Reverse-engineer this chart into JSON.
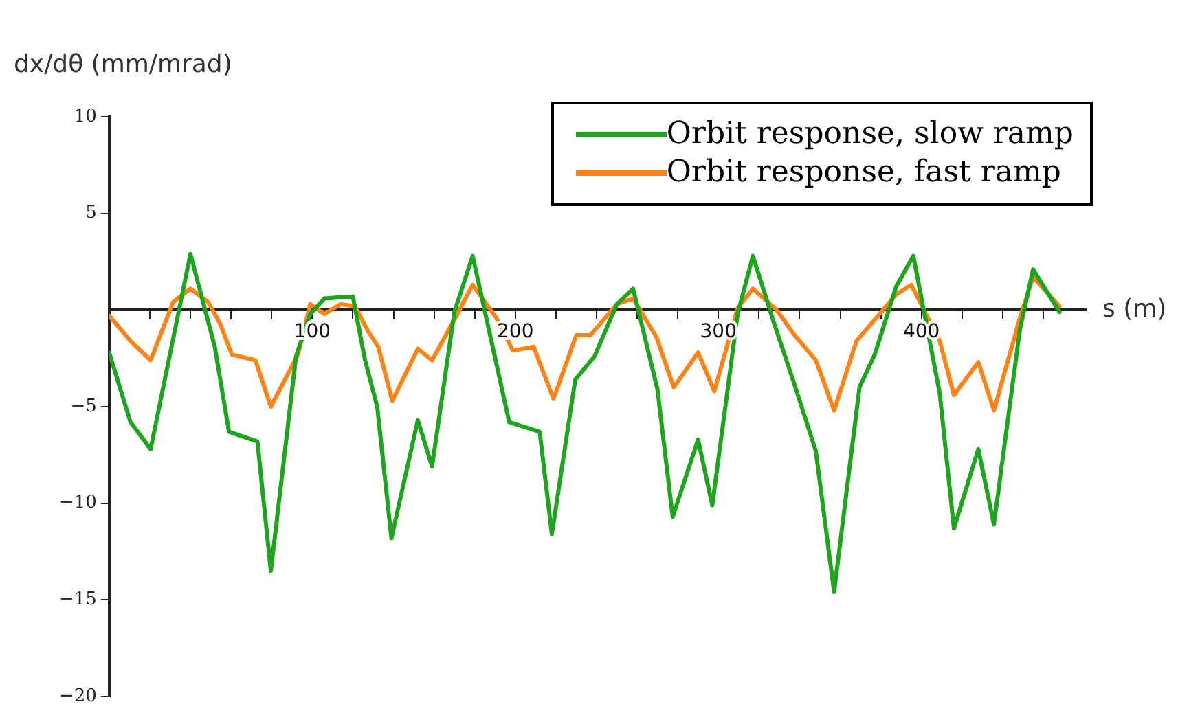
{
  "chart_data": {
    "type": "line",
    "ylabel": "dx/dθ (mm/mrad)",
    "xlabel": "s (m)",
    "xlim": [
      0,
      481
    ],
    "ylim": [
      -20,
      10
    ],
    "xticks": [
      {
        "value": 20,
        "label": null
      },
      {
        "value": 40,
        "label": null
      },
      {
        "value": 60,
        "label": null
      },
      {
        "value": 80,
        "label": null
      },
      100,
      {
        "value": 120,
        "label": null
      },
      {
        "value": 140,
        "label": null
      },
      {
        "value": 160,
        "label": null
      },
      {
        "value": 180,
        "label": null
      },
      200,
      {
        "value": 220,
        "label": null
      },
      {
        "value": 240,
        "label": null
      },
      {
        "value": 260,
        "label": null
      },
      {
        "value": 280,
        "label": null
      },
      300,
      {
        "value": 320,
        "label": null
      },
      {
        "value": 340,
        "label": null
      },
      {
        "value": 360,
        "label": null
      },
      {
        "value": 380,
        "label": null
      },
      400,
      {
        "value": 420,
        "label": null
      },
      {
        "value": 440,
        "label": null
      },
      {
        "value": 460,
        "label": null
      }
    ],
    "yticks": [
      -20,
      -15,
      -10,
      -5,
      5,
      10
    ],
    "grid": false,
    "legend": "top right",
    "marker": "none",
    "line_style": "solid",
    "series": [
      {
        "name": "Orbit response, slow ramp",
        "color": "#1ea51e",
        "x": [
          0,
          10.5,
          20.4,
          40,
          52,
          59,
          73,
          79.6,
          92,
          99,
          106,
          120,
          126,
          132,
          139,
          152,
          159,
          170,
          179,
          197,
          212,
          218,
          229.5,
          239,
          250,
          258,
          270,
          277.5,
          290,
          297,
          309.5,
          317,
          327.5,
          337,
          348,
          357,
          369.5,
          377,
          387.5,
          396,
          409,
          416,
          428,
          435.7,
          448.5,
          455,
          468
        ],
        "values": [
          -2.2,
          -5.8,
          -7.2,
          2.9,
          -1.9,
          -6.3,
          -6.8,
          -13.5,
          -2.4,
          -0.2,
          0.6,
          0.7,
          -2.6,
          -5.0,
          -11.8,
          -5.7,
          -8.1,
          -0.1,
          2.8,
          -5.8,
          -6.3,
          -11.6,
          -3.6,
          -2.4,
          0.3,
          1.1,
          -4.1,
          -10.7,
          -6.7,
          -10.1,
          -0.2,
          2.8,
          -0.7,
          -3.7,
          -7.3,
          -14.6,
          -4.0,
          -2.3,
          1.2,
          2.8,
          -4.3,
          -11.3,
          -7.2,
          -11.1,
          -1.0,
          2.1,
          -0.1
        ]
      },
      {
        "name": "Orbit response, fast ramp",
        "color": "#ff8214",
        "x": [
          0,
          10.5,
          20.4,
          31.4,
          40,
          48.8,
          54.6,
          60.4,
          72,
          79.6,
          93,
          99,
          106,
          114,
          121,
          127.5,
          132.5,
          139.4,
          152,
          159,
          171,
          179,
          190.6,
          198.8,
          209,
          218.8,
          230,
          237,
          250,
          258,
          269.5,
          278,
          290,
          298,
          309.5,
          317,
          328.7,
          337.5,
          348,
          357,
          368,
          377,
          387.5,
          395,
          409,
          416,
          428,
          435.7,
          448.5,
          455,
          468
        ],
        "values": [
          -0.3,
          -1.6,
          -2.6,
          0.4,
          1.1,
          0.4,
          -0.7,
          -2.3,
          -2.6,
          -5.0,
          -2.3,
          0.3,
          -0.2,
          0.3,
          0.2,
          -1.1,
          -1.9,
          -4.7,
          -2.0,
          -2.6,
          -0.3,
          1.3,
          -0.4,
          -2.1,
          -1.9,
          -4.6,
          -1.3,
          -1.3,
          0.3,
          0.6,
          -1.4,
          -4.0,
          -2.2,
          -4.2,
          0.1,
          1.1,
          0.0,
          -1.3,
          -2.6,
          -5.2,
          -1.6,
          -0.5,
          0.8,
          1.3,
          -1.6,
          -4.4,
          -2.7,
          -5.2,
          -0.4,
          1.7,
          0.2
        ]
      }
    ]
  }
}
